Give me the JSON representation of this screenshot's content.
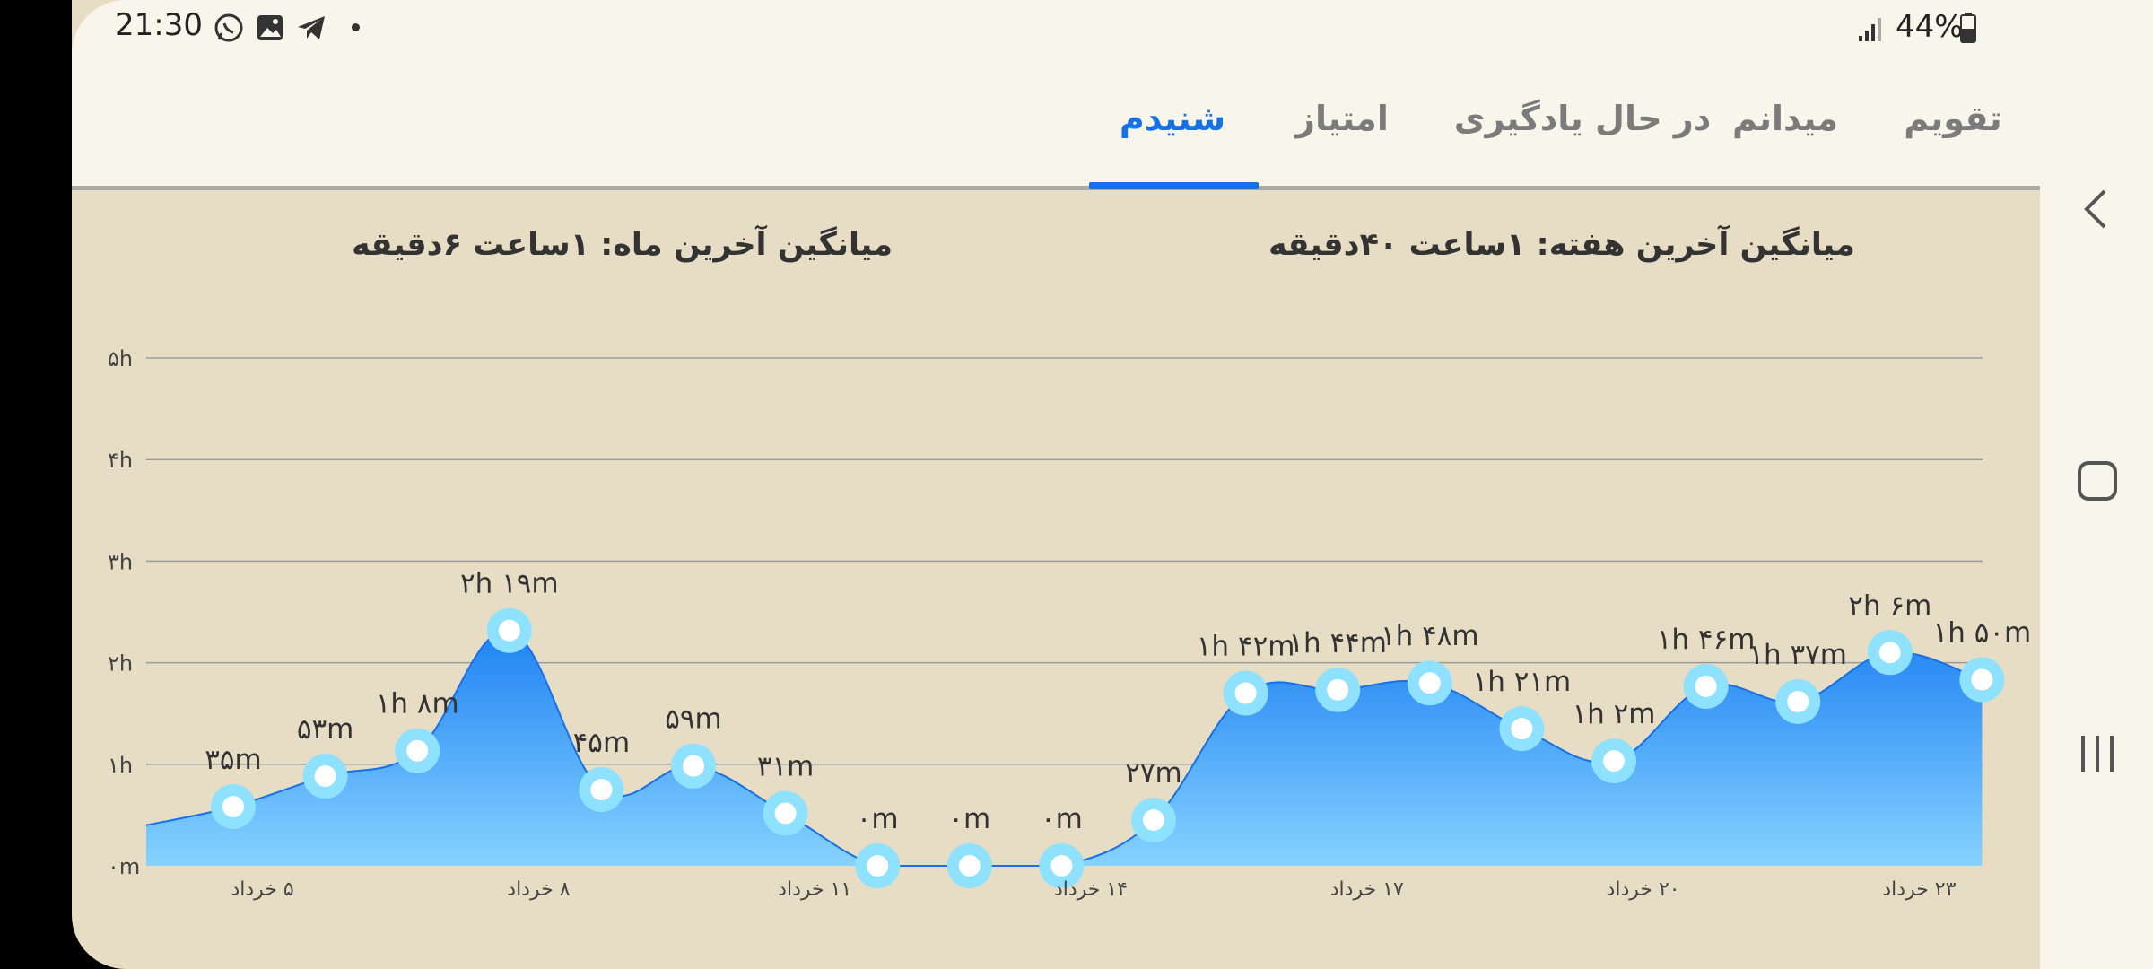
{
  "status": {
    "time": "21:30",
    "battery": "44%",
    "icons": [
      "whatsapp-icon",
      "gallery-icon",
      "telegram-icon",
      "notification-dot-icon",
      "signal-icon",
      "battery-icon"
    ]
  },
  "tabs": [
    {
      "label": "تقویم",
      "active": false
    },
    {
      "label": "میدانم",
      "active": false
    },
    {
      "label": "در حال یادگیری",
      "active": false
    },
    {
      "label": "امتیاز",
      "active": false
    },
    {
      "label": "شنیدم",
      "active": true
    }
  ],
  "averages": {
    "week": "میانگین آخرین هفته: ۱ساعت  ۴۰دقیقه",
    "month": "میانگین آخرین ماه: ۱ساعت  ۶دقیقه"
  },
  "colors": {
    "accent": "#1670e6",
    "area_top": "#1e82f3",
    "area_bottom": "#86d2ff",
    "point_ring": "#8ee1ff",
    "background": "#e6ddc4"
  },
  "chart_data": {
    "type": "area",
    "ylim": [
      0,
      5
    ],
    "y_ticks": [
      "۰m",
      "۱h",
      "۲h",
      "۳h",
      "۴h",
      "۵h"
    ],
    "x_tick_labels": [
      "۵ خرداد",
      "۸ خرداد",
      "۱۱ خرداد",
      "۱۴ خرداد",
      "۱۷ خرداد",
      "۲۰ خرداد",
      "۲۳ خرداد"
    ],
    "points": [
      {
        "value": 0.583,
        "label": "۳۵m"
      },
      {
        "value": 0.883,
        "label": "۵۳m"
      },
      {
        "value": 1.133,
        "label": "۱h ۸m"
      },
      {
        "value": 2.317,
        "label": "۲h ۱۹m"
      },
      {
        "value": 0.75,
        "label": "۴۵m"
      },
      {
        "value": 0.983,
        "label": "۵۹m"
      },
      {
        "value": 0.517,
        "label": "۳۱m"
      },
      {
        "value": 0,
        "label": "۰m"
      },
      {
        "value": 0,
        "label": "۰m"
      },
      {
        "value": 0,
        "label": "۰m"
      },
      {
        "value": 0.45,
        "label": "۲۷m"
      },
      {
        "value": 1.7,
        "label": "۱h ۴۲m"
      },
      {
        "value": 1.733,
        "label": "۱h ۴۴m"
      },
      {
        "value": 1.8,
        "label": "۱h ۴۸m"
      },
      {
        "value": 1.35,
        "label": "۱h ۲۱m"
      },
      {
        "value": 1.033,
        "label": "۱h ۲m"
      },
      {
        "value": 1.767,
        "label": "۱h ۴۶m"
      },
      {
        "value": 1.617,
        "label": "۱h ۳۷m"
      },
      {
        "value": 2.1,
        "label": "۲h ۶m"
      },
      {
        "value": 1.833,
        "label": "۱h ۵۰m"
      }
    ]
  }
}
